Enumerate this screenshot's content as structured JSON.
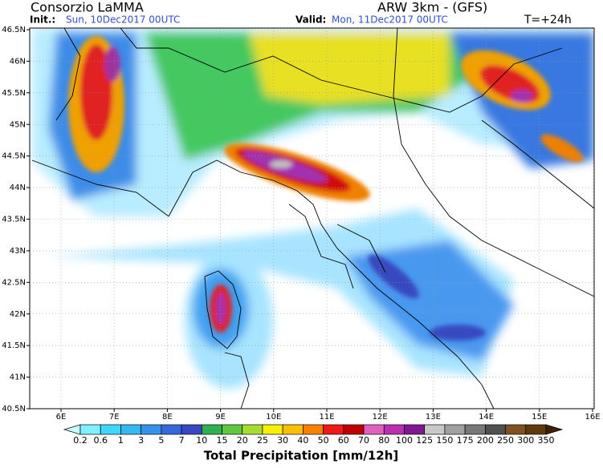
{
  "header": {
    "title": "Consorzio LaMMA",
    "model": "ARW 3km - (GFS)",
    "init_label": "Init.:",
    "init_value": "Sun, 10Dec2017 00UTC",
    "valid_label": "Valid:",
    "valid_value": "Mon, 11Dec2017 00UTC",
    "forecast": "T=+24h"
  },
  "map": {
    "lat_ticks": [
      "46.5N",
      "46N",
      "45.5N",
      "45N",
      "44.5N",
      "44N",
      "43.5N",
      "43N",
      "42.5N",
      "42N",
      "41.5N",
      "41N",
      "40.5N"
    ],
    "lon_ticks": [
      "6E",
      "7E",
      "8E",
      "9E",
      "10E",
      "11E",
      "12E",
      "13E",
      "14E",
      "15E",
      "16E"
    ]
  },
  "colorbar": {
    "title": "Total Precipitation [mm/12h]",
    "labels": [
      "0.2",
      "0.6",
      "1",
      "3",
      "5",
      "7",
      "10",
      "15",
      "20",
      "25",
      "30",
      "40",
      "50",
      "60",
      "70",
      "80",
      "100",
      "125",
      "150",
      "175",
      "200",
      "250",
      "300",
      "350"
    ],
    "colors": [
      "#c8ffff",
      "#80f0ff",
      "#40d8f8",
      "#38b8f0",
      "#3890e8",
      "#3868d8",
      "#3848c0",
      "#30b050",
      "#60c840",
      "#a8dc30",
      "#f8f000",
      "#f8c000",
      "#f88000",
      "#f01818",
      "#c00000",
      "#e060c0",
      "#b830b0",
      "#801890",
      "#c8c8c8",
      "#a0a0a0",
      "#787878",
      "#505050",
      "#805020",
      "#603810",
      "#402000"
    ]
  }
}
